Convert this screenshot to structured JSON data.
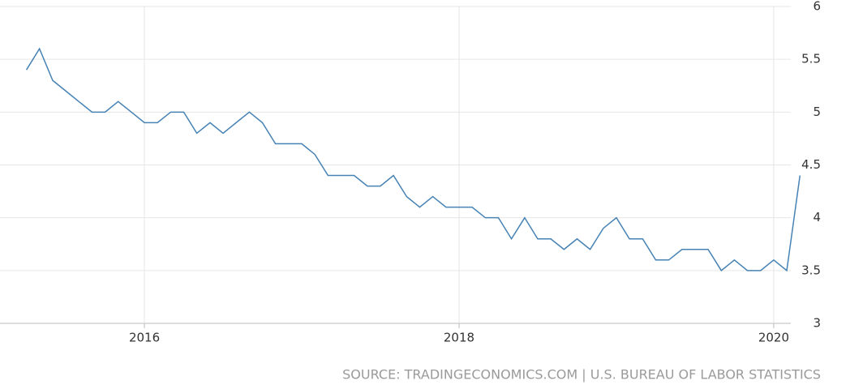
{
  "chart_data": {
    "type": "line",
    "source": "SOURCE: TRADINGECONOMICS.COM | U.S. BUREAU OF LABOR STATISTICS",
    "x": [
      2015.25,
      2015.333,
      2015.417,
      2015.5,
      2015.583,
      2015.667,
      2015.75,
      2015.833,
      2015.917,
      2016.0,
      2016.083,
      2016.167,
      2016.25,
      2016.333,
      2016.417,
      2016.5,
      2016.583,
      2016.667,
      2016.75,
      2016.833,
      2016.917,
      2017.0,
      2017.083,
      2017.167,
      2017.25,
      2017.333,
      2017.417,
      2017.5,
      2017.583,
      2017.667,
      2017.75,
      2017.833,
      2017.917,
      2018.0,
      2018.083,
      2018.167,
      2018.25,
      2018.333,
      2018.417,
      2018.5,
      2018.583,
      2018.667,
      2018.75,
      2018.833,
      2018.917,
      2019.0,
      2019.083,
      2019.167,
      2019.25,
      2019.333,
      2019.417,
      2019.5,
      2019.583,
      2019.667,
      2019.75,
      2019.833,
      2019.917,
      2020.0,
      2020.083,
      2020.167
    ],
    "series": [
      {
        "color": "#4682b4",
        "values": [
          5.4,
          5.6,
          5.3,
          5.2,
          5.1,
          5.0,
          5.0,
          5.1,
          5.0,
          4.9,
          4.9,
          5.0,
          5.0,
          4.8,
          4.9,
          4.8,
          4.9,
          5.0,
          4.9,
          4.7,
          4.7,
          4.7,
          4.6,
          4.4,
          4.4,
          4.4,
          4.3,
          4.3,
          4.4,
          4.2,
          4.1,
          4.2,
          4.1,
          4.1,
          4.1,
          4.0,
          4.0,
          3.8,
          4.0,
          3.8,
          3.8,
          3.7,
          3.8,
          3.7,
          3.9,
          4.0,
          3.8,
          3.8,
          3.6,
          3.6,
          3.7,
          3.7,
          3.7,
          3.5,
          3.6,
          3.5,
          3.5,
          3.6,
          3.5,
          4.4
        ]
      }
    ],
    "xlim": [
      2015.082,
      2020.186
    ],
    "xticks": [
      2016,
      2018,
      2020
    ],
    "ylim": [
      3,
      6
    ],
    "yticks": [
      3,
      3.5,
      4,
      4.5,
      5,
      5.5,
      6
    ],
    "grid": true
  }
}
